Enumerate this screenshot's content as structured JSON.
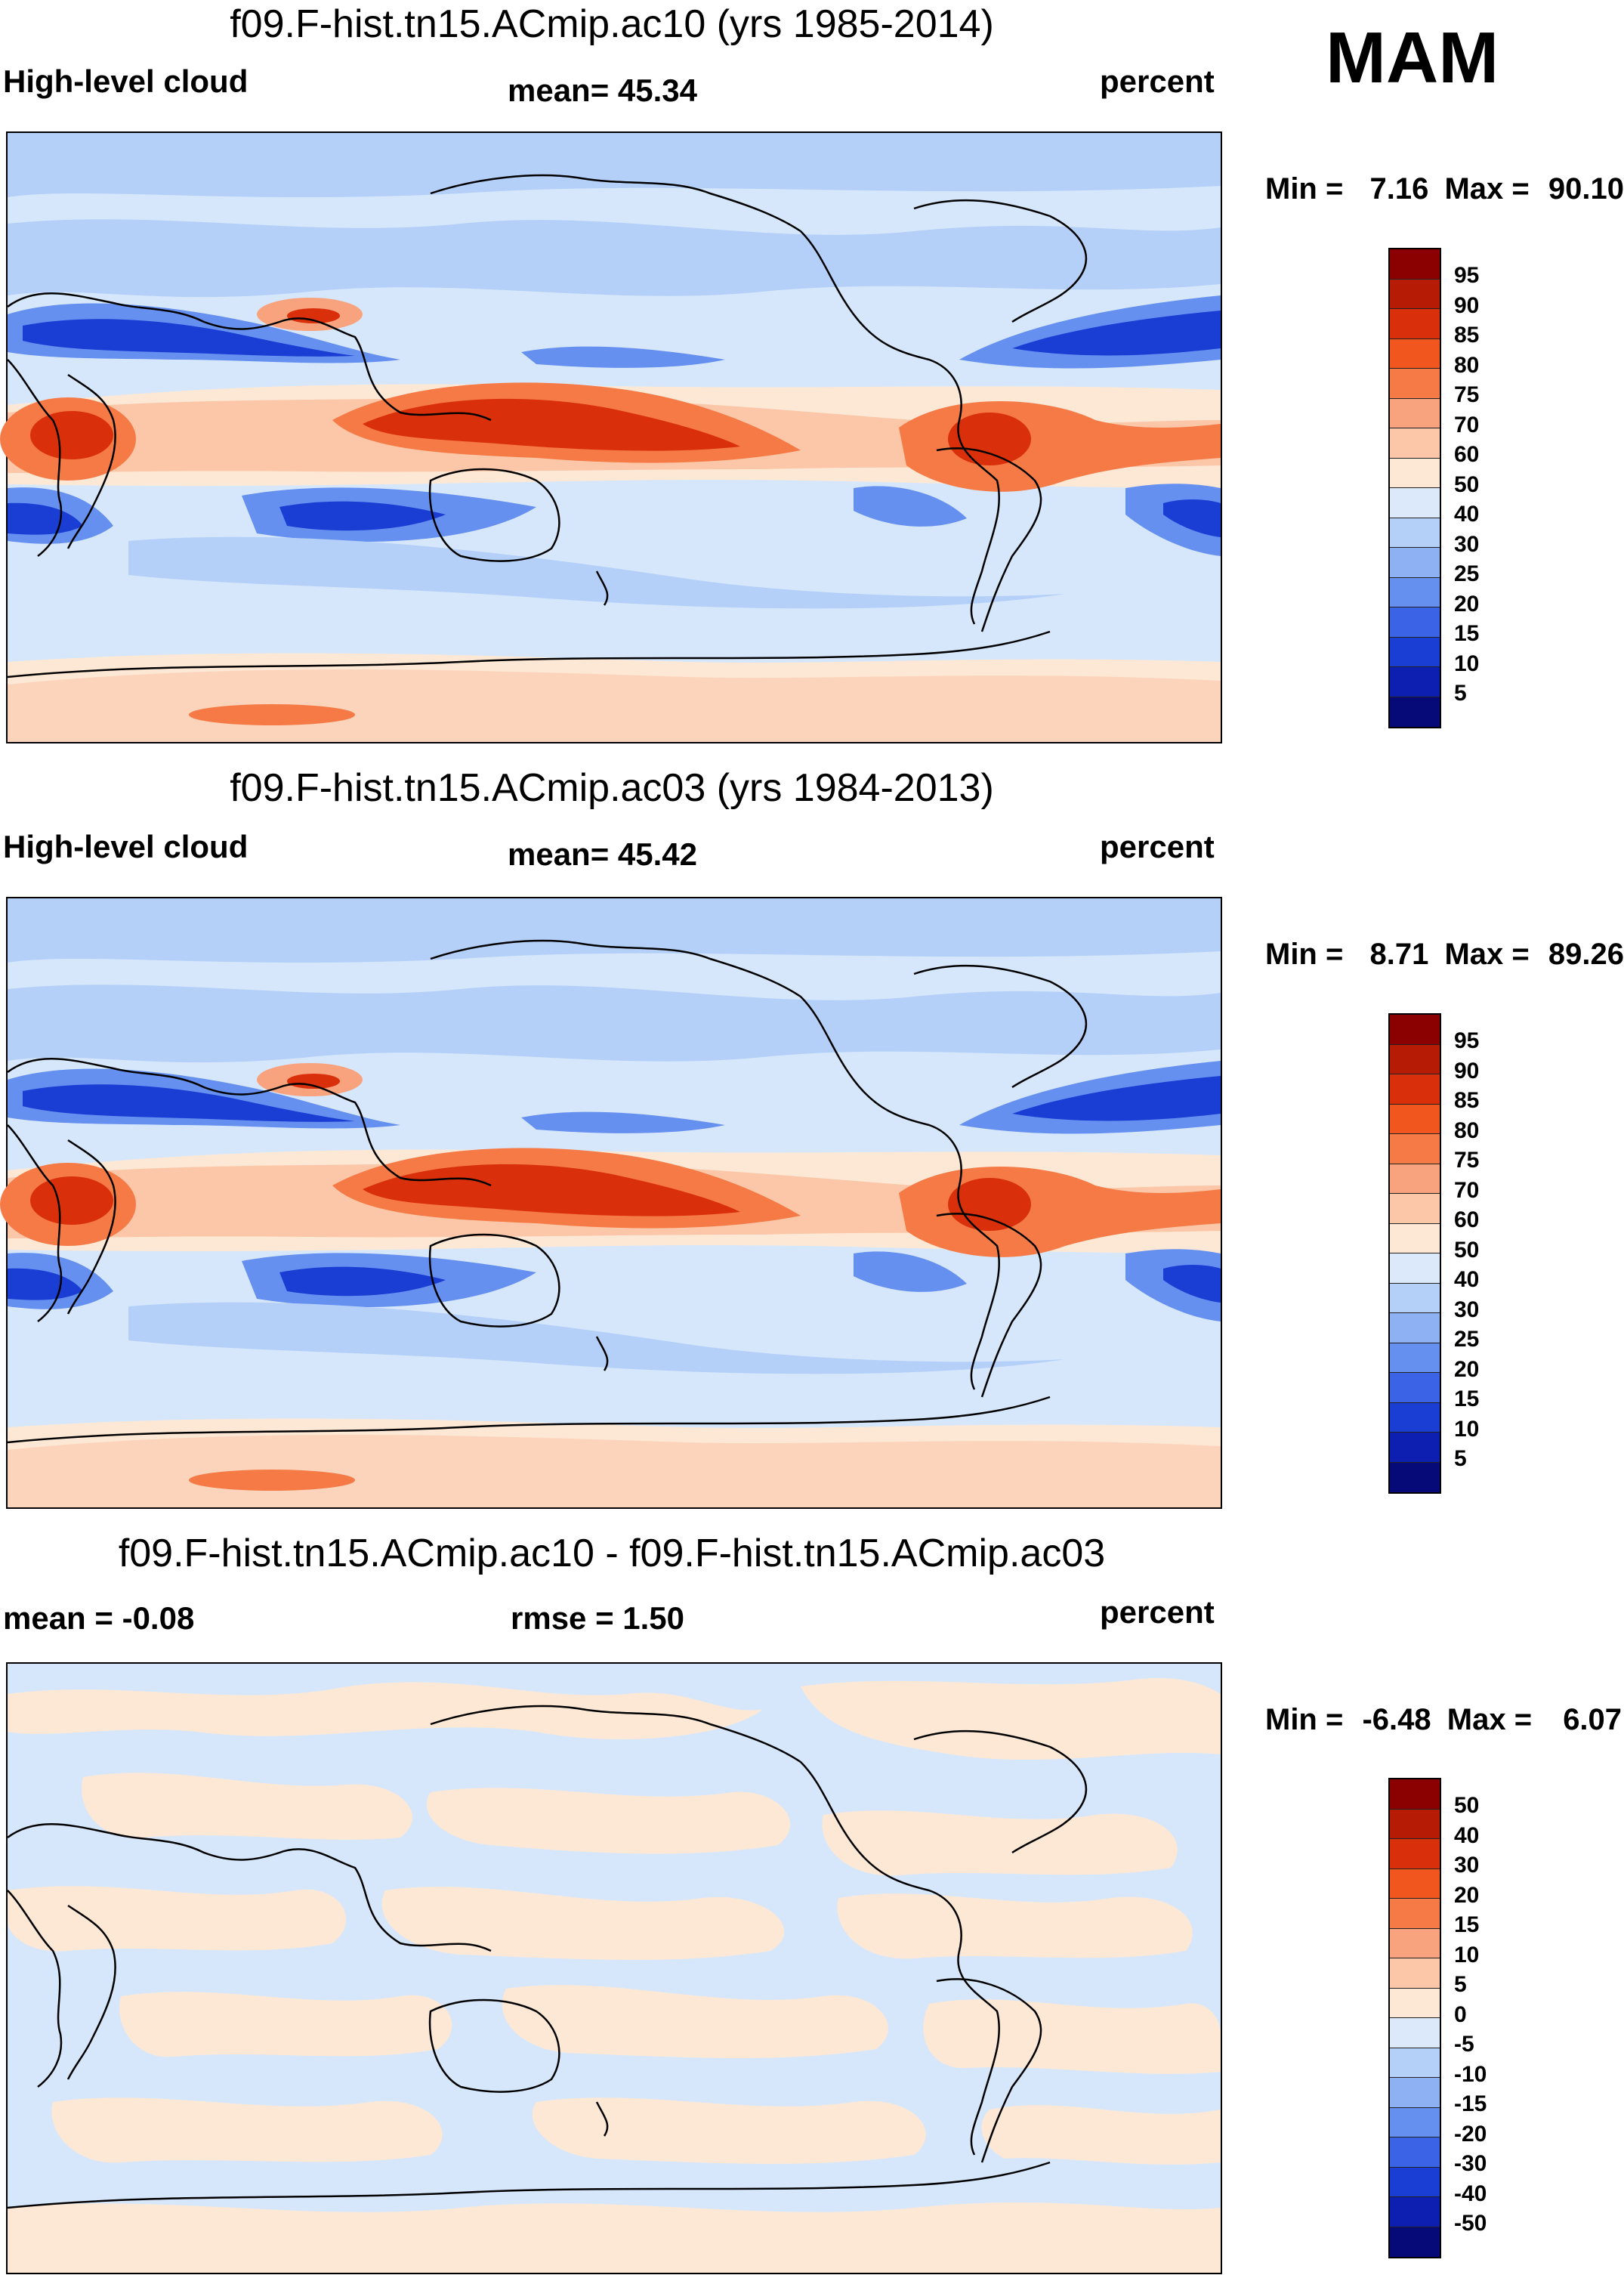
{
  "season": "MAM",
  "variable": "High-level cloud",
  "units": "percent",
  "panels": [
    {
      "title": "f09.F-hist.tn15.ACmip.ac10 (yrs 1985-2014)",
      "left_label": "High-level cloud",
      "stat_label": "mean=  45.34",
      "units_label": "percent",
      "min_label": "Min =",
      "min_value": "7.16",
      "max_label": "Max =",
      "max_value": "90.10",
      "colorbar_labels": [
        "95",
        "90",
        "85",
        "80",
        "75",
        "70",
        "60",
        "50",
        "40",
        "30",
        "25",
        "20",
        "15",
        "10",
        "5"
      ]
    },
    {
      "title": "f09.F-hist.tn15.ACmip.ac03 (yrs 1984-2013)",
      "left_label": "High-level cloud",
      "stat_label": "mean=  45.42",
      "units_label": "percent",
      "min_label": "Min =",
      "min_value": "8.71",
      "max_label": "Max =",
      "max_value": "89.26",
      "colorbar_labels": [
        "95",
        "90",
        "85",
        "80",
        "75",
        "70",
        "60",
        "50",
        "40",
        "30",
        "25",
        "20",
        "15",
        "10",
        "5"
      ]
    },
    {
      "title": "f09.F-hist.tn15.ACmip.ac10 - f09.F-hist.tn15.ACmip.ac03",
      "left_label": "mean =  -0.08",
      "stat_label": "rmse =   1.50",
      "units_label": "percent",
      "min_label": "Min =",
      "min_value": "-6.48",
      "max_label": "Max =",
      "max_value": "6.07",
      "colorbar_labels": [
        "50",
        "40",
        "30",
        "20",
        "15",
        "10",
        "5",
        "0",
        "-5",
        "-10",
        "-15",
        "-20",
        "-30",
        "-40",
        "-50"
      ]
    }
  ],
  "colorbar_colors": [
    "#8b0000",
    "#b51b05",
    "#d9300b",
    "#f0561d",
    "#f57a45",
    "#f8a37e",
    "#fbc7a8",
    "#fde8d6",
    "#dce9fa",
    "#b5d0f8",
    "#8db1f3",
    "#6690ef",
    "#3a63e6",
    "#1a3ed4",
    "#0c1fb0",
    "#050a78"
  ],
  "chart_data": {
    "type": "heatmap",
    "title": "High-level cloud, MAM",
    "units": "percent",
    "panels": [
      {
        "name": "f09.F-hist.tn15.ACmip.ac10 (yrs 1985-2014)",
        "mean": 45.34,
        "min": 7.16,
        "max": 90.1,
        "levels": [
          5,
          10,
          15,
          20,
          25,
          30,
          40,
          50,
          60,
          70,
          75,
          80,
          85,
          90,
          95
        ]
      },
      {
        "name": "f09.F-hist.tn15.ACmip.ac03 (yrs 1984-2013)",
        "mean": 45.42,
        "min": 8.71,
        "max": 89.26,
        "levels": [
          5,
          10,
          15,
          20,
          25,
          30,
          40,
          50,
          60,
          70,
          75,
          80,
          85,
          90,
          95
        ]
      },
      {
        "name": "f09.F-hist.tn15.ACmip.ac10 - f09.F-hist.tn15.ACmip.ac03",
        "mean": -0.08,
        "rmse": 1.5,
        "min": -6.48,
        "max": 6.07,
        "levels": [
          -50,
          -40,
          -30,
          -20,
          -15,
          -10,
          -5,
          0,
          5,
          10,
          15,
          20,
          30,
          40,
          50
        ]
      }
    ]
  }
}
